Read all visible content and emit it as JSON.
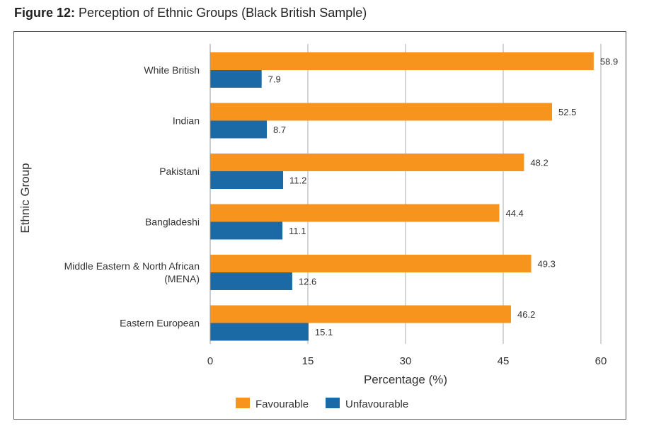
{
  "figure": {
    "label": "Figure 12:",
    "title": "Perception of Ethnic Groups (Black British Sample)"
  },
  "colors": {
    "favourable": "#f7941d",
    "unfavourable": "#1b6aa5",
    "grid": "#bbbbbb",
    "text": "#333333"
  },
  "chart_data": {
    "type": "bar",
    "orientation": "horizontal",
    "title": "Perception of Ethnic Groups (Black British Sample)",
    "xlabel": "Percentage (%)",
    "ylabel": "Ethnic Group",
    "xlim": [
      0,
      60
    ],
    "xticks": [
      0,
      15,
      30,
      45,
      60
    ],
    "grid": true,
    "legend_position": "bottom",
    "categories": [
      [
        "White British"
      ],
      [
        "Indian"
      ],
      [
        "Pakistani"
      ],
      [
        "Bangladeshi"
      ],
      [
        "Middle Eastern & North African",
        "(MENA)"
      ],
      [
        "Eastern European"
      ]
    ],
    "series": [
      {
        "name": "Favourable",
        "values": [
          58.9,
          52.5,
          48.2,
          44.4,
          49.3,
          46.2
        ]
      },
      {
        "name": "Unfavourable",
        "values": [
          7.9,
          8.7,
          11.2,
          11.1,
          12.6,
          15.1
        ]
      }
    ]
  }
}
